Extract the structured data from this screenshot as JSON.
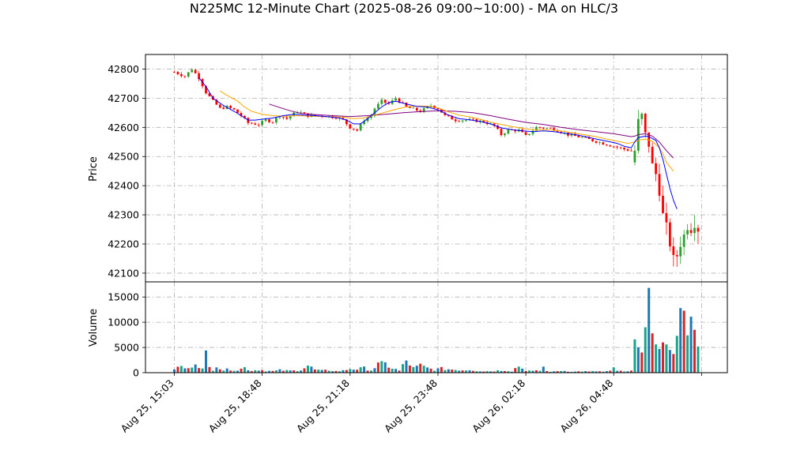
{
  "chart_data": {
    "type": "candlestick",
    "title": "N225MC 12-Minute Chart (2025-08-26 09:00~10:00) - MA on HLC/3",
    "price_panel": {
      "ylabel": "Price",
      "yticks": [
        42100,
        42200,
        42300,
        42400,
        42500,
        42600,
        42700,
        42800
      ],
      "ylim": [
        42070,
        42850
      ],
      "grid": true
    },
    "volume_panel": {
      "ylabel": "Volume",
      "yticks": [
        0,
        5000,
        10000,
        15000
      ],
      "ylim": [
        0,
        18000
      ],
      "grid": true
    },
    "xtick_labels": [
      "Aug 25, 15:03",
      "Aug 25, 18:48",
      "Aug 25, 21:18",
      "Aug 25, 23:48",
      "Aug 26, 02:18",
      "Aug 26, 04:48"
    ],
    "xtick_index": [
      0,
      25,
      50,
      75,
      100,
      125
    ],
    "n_bars": 150,
    "colors": {
      "up": "#2ca02c",
      "down": "#ff0000",
      "vol_a": "#1f77b4",
      "vol_b": "#d62728",
      "vol_c": "#17a589"
    },
    "close_anchors": [
      [
        0,
        42790
      ],
      [
        3,
        42775
      ],
      [
        5,
        42800
      ],
      [
        7,
        42770
      ],
      [
        9,
        42720
      ],
      [
        11,
        42690
      ],
      [
        13,
        42665
      ],
      [
        15,
        42670
      ],
      [
        17,
        42660
      ],
      [
        19,
        42640
      ],
      [
        21,
        42615
      ],
      [
        24,
        42610
      ],
      [
        26,
        42625
      ],
      [
        28,
        42620
      ],
      [
        30,
        42640
      ],
      [
        32,
        42630
      ],
      [
        35,
        42655
      ],
      [
        38,
        42640
      ],
      [
        42,
        42640
      ],
      [
        46,
        42635
      ],
      [
        48,
        42625
      ],
      [
        50,
        42600
      ],
      [
        52,
        42590
      ],
      [
        54,
        42625
      ],
      [
        56,
        42640
      ],
      [
        57,
        42665
      ],
      [
        59,
        42690
      ],
      [
        61,
        42680
      ],
      [
        63,
        42700
      ],
      [
        66,
        42670
      ],
      [
        70,
        42655
      ],
      [
        73,
        42675
      ],
      [
        75,
        42665
      ],
      [
        77,
        42640
      ],
      [
        80,
        42625
      ],
      [
        84,
        42625
      ],
      [
        88,
        42620
      ],
      [
        91,
        42605
      ],
      [
        93,
        42575
      ],
      [
        95,
        42590
      ],
      [
        98,
        42590
      ],
      [
        100,
        42570
      ],
      [
        103,
        42600
      ],
      [
        108,
        42595
      ],
      [
        112,
        42575
      ],
      [
        116,
        42565
      ],
      [
        119,
        42555
      ],
      [
        122,
        42545
      ],
      [
        125,
        42535
      ],
      [
        128,
        42525
      ],
      [
        130,
        42520
      ],
      [
        131,
        42520
      ],
      [
        132,
        42620
      ],
      [
        133,
        42640
      ],
      [
        134,
        42575
      ],
      [
        135,
        42540
      ],
      [
        136,
        42470
      ],
      [
        137,
        42440
      ],
      [
        138,
        42380
      ],
      [
        139,
        42300
      ],
      [
        140,
        42260
      ],
      [
        141,
        42200
      ],
      [
        142,
        42150
      ],
      [
        143,
        42160
      ],
      [
        144,
        42200
      ],
      [
        145,
        42230
      ],
      [
        146,
        42260
      ],
      [
        147,
        42250
      ],
      [
        148,
        42270
      ],
      [
        149,
        42250
      ]
    ],
    "gap_after_index": 130,
    "ma_fast": [
      [
        7,
        42770
      ],
      [
        9,
        42740
      ],
      [
        11,
        42700
      ],
      [
        14,
        42675
      ],
      [
        17,
        42655
      ],
      [
        19,
        42640
      ],
      [
        21,
        42625
      ],
      [
        23,
        42625
      ],
      [
        25,
        42628
      ],
      [
        28,
        42632
      ],
      [
        31,
        42640
      ],
      [
        34,
        42645
      ],
      [
        37,
        42642
      ],
      [
        40,
        42640
      ],
      [
        44,
        42636
      ],
      [
        47,
        42632
      ],
      [
        49,
        42625
      ],
      [
        51,
        42612
      ],
      [
        53,
        42612
      ],
      [
        55,
        42630
      ],
      [
        57,
        42650
      ],
      [
        59,
        42670
      ],
      [
        61,
        42685
      ],
      [
        63,
        42690
      ],
      [
        66,
        42680
      ],
      [
        69,
        42672
      ],
      [
        72,
        42670
      ],
      [
        75,
        42660
      ],
      [
        78,
        42642
      ],
      [
        81,
        42630
      ],
      [
        84,
        42626
      ],
      [
        87,
        42620
      ],
      [
        90,
        42612
      ],
      [
        93,
        42598
      ],
      [
        96,
        42592
      ],
      [
        99,
        42588
      ],
      [
        102,
        42585
      ],
      [
        105,
        42588
      ],
      [
        108,
        42585
      ],
      [
        111,
        42580
      ],
      [
        114,
        42575
      ],
      [
        117,
        42568
      ],
      [
        120,
        42560
      ],
      [
        123,
        42553
      ],
      [
        126,
        42545
      ],
      [
        128,
        42535
      ],
      [
        130,
        42530
      ],
      [
        131,
        42550
      ],
      [
        132,
        42565
      ],
      [
        134,
        42570
      ],
      [
        135,
        42568
      ],
      [
        137,
        42555
      ],
      [
        138,
        42530
      ],
      [
        139,
        42490
      ],
      [
        140,
        42440
      ],
      [
        141,
        42390
      ],
      [
        142,
        42350
      ],
      [
        143,
        42320
      ]
    ],
    "ma_mid": [
      [
        13,
        42725
      ],
      [
        15,
        42710
      ],
      [
        18,
        42690
      ],
      [
        20,
        42670
      ],
      [
        22,
        42655
      ],
      [
        25,
        42645
      ],
      [
        28,
        42640
      ],
      [
        31,
        42638
      ],
      [
        35,
        42640
      ],
      [
        40,
        42638
      ],
      [
        45,
        42636
      ],
      [
        48,
        42635
      ],
      [
        51,
        42630
      ],
      [
        54,
        42632
      ],
      [
        57,
        42642
      ],
      [
        60,
        42652
      ],
      [
        63,
        42662
      ],
      [
        66,
        42670
      ],
      [
        69,
        42673
      ],
      [
        72,
        42673
      ],
      [
        75,
        42667
      ],
      [
        78,
        42653
      ],
      [
        81,
        42642
      ],
      [
        84,
        42636
      ],
      [
        87,
        42628
      ],
      [
        90,
        42618
      ],
      [
        93,
        42610
      ],
      [
        96,
        42603
      ],
      [
        99,
        42597
      ],
      [
        102,
        42592
      ],
      [
        105,
        42592
      ],
      [
        108,
        42590
      ],
      [
        111,
        42586
      ],
      [
        114,
        42580
      ],
      [
        117,
        42574
      ],
      [
        120,
        42568
      ],
      [
        123,
        42560
      ],
      [
        126,
        42553
      ],
      [
        129,
        42545
      ],
      [
        131,
        42550
      ],
      [
        132,
        42556
      ],
      [
        134,
        42560
      ],
      [
        136,
        42552
      ],
      [
        138,
        42530
      ],
      [
        139,
        42510
      ],
      [
        140,
        42480
      ],
      [
        142,
        42450
      ]
    ],
    "ma_slow": [
      [
        27,
        42680
      ],
      [
        30,
        42668
      ],
      [
        33,
        42657
      ],
      [
        36,
        42648
      ],
      [
        40,
        42644
      ],
      [
        45,
        42640
      ],
      [
        50,
        42637
      ],
      [
        55,
        42640
      ],
      [
        60,
        42645
      ],
      [
        65,
        42650
      ],
      [
        70,
        42654
      ],
      [
        75,
        42657
      ],
      [
        80,
        42655
      ],
      [
        85,
        42650
      ],
      [
        90,
        42640
      ],
      [
        95,
        42628
      ],
      [
        100,
        42617
      ],
      [
        105,
        42610
      ],
      [
        110,
        42600
      ],
      [
        115,
        42592
      ],
      [
        120,
        42585
      ],
      [
        125,
        42578
      ],
      [
        128,
        42572
      ],
      [
        130,
        42568
      ],
      [
        131,
        42570
      ],
      [
        132,
        42575
      ],
      [
        134,
        42578
      ],
      [
        136,
        42570
      ],
      [
        138,
        42550
      ],
      [
        140,
        42520
      ],
      [
        142,
        42495
      ]
    ],
    "ma_colors": {
      "fast": "#0000ff",
      "mid": "#ffa500",
      "slow": "#800080"
    },
    "volume_anchors": [
      [
        0,
        800
      ],
      [
        2,
        1200
      ],
      [
        4,
        700
      ],
      [
        6,
        2300
      ],
      [
        7,
        1500
      ],
      [
        8,
        700
      ],
      [
        9,
        3400
      ],
      [
        10,
        1000
      ],
      [
        11,
        600
      ],
      [
        12,
        1700
      ],
      [
        13,
        900
      ],
      [
        14,
        500
      ],
      [
        16,
        700
      ],
      [
        18,
        500
      ],
      [
        20,
        1000
      ],
      [
        22,
        400
      ],
      [
        24,
        600
      ],
      [
        26,
        400
      ],
      [
        28,
        300
      ],
      [
        30,
        500
      ],
      [
        32,
        400
      ],
      [
        34,
        400
      ],
      [
        36,
        600
      ],
      [
        38,
        1400
      ],
      [
        40,
        600
      ],
      [
        42,
        400
      ],
      [
        44,
        500
      ],
      [
        46,
        300
      ],
      [
        48,
        400
      ],
      [
        50,
        800
      ],
      [
        52,
        700
      ],
      [
        54,
        900
      ],
      [
        56,
        500
      ],
      [
        58,
        1600
      ],
      [
        60,
        1700
      ],
      [
        62,
        900
      ],
      [
        64,
        400
      ],
      [
        66,
        2300
      ],
      [
        67,
        1700
      ],
      [
        68,
        900
      ],
      [
        70,
        1400
      ],
      [
        72,
        900
      ],
      [
        74,
        600
      ],
      [
        76,
        800
      ],
      [
        78,
        700
      ],
      [
        80,
        600
      ],
      [
        82,
        500
      ],
      [
        84,
        600
      ],
      [
        86,
        400
      ],
      [
        88,
        300
      ],
      [
        90,
        300
      ],
      [
        92,
        400
      ],
      [
        94,
        500
      ],
      [
        96,
        300
      ],
      [
        98,
        1400
      ],
      [
        99,
        800
      ],
      [
        100,
        500
      ],
      [
        102,
        300
      ],
      [
        104,
        400
      ],
      [
        105,
        1200
      ],
      [
        106,
        300
      ],
      [
        108,
        200
      ],
      [
        110,
        400
      ],
      [
        112,
        300
      ],
      [
        114,
        200
      ],
      [
        116,
        300
      ],
      [
        118,
        200
      ],
      [
        120,
        300
      ],
      [
        122,
        200
      ],
      [
        124,
        300
      ],
      [
        125,
        900
      ],
      [
        126,
        400
      ],
      [
        128,
        200
      ],
      [
        130,
        300
      ],
      [
        131,
        6600
      ],
      [
        132,
        5000
      ],
      [
        133,
        4000
      ],
      [
        134,
        9000
      ],
      [
        135,
        16800
      ],
      [
        136,
        7800
      ],
      [
        137,
        5600
      ],
      [
        138,
        4700
      ],
      [
        139,
        6000
      ],
      [
        140,
        5600
      ],
      [
        141,
        4500
      ],
      [
        142,
        3700
      ],
      [
        143,
        7300
      ],
      [
        144,
        12800
      ],
      [
        145,
        12300
      ],
      [
        146,
        7400
      ],
      [
        147,
        11100
      ],
      [
        148,
        8500
      ],
      [
        149,
        5200
      ]
    ]
  }
}
